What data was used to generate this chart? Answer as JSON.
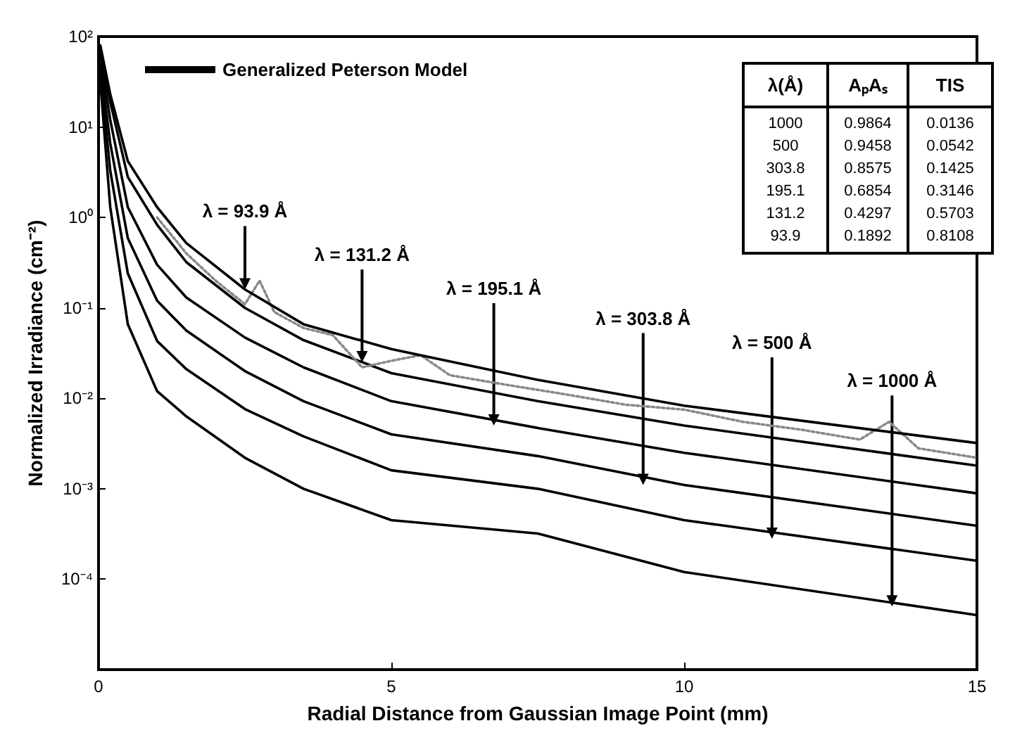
{
  "chart_data": {
    "type": "line",
    "xlabel": "Radial Distance from Gaussian Image Point (mm)",
    "ylabel": "Normalized Irradiance (cm⁻²)",
    "x": [
      0.03,
      0.2,
      0.5,
      1,
      1.5,
      2.5,
      3.5,
      5,
      7.5,
      10,
      15
    ],
    "series": [
      {
        "name": "Generalized Peterson Model",
        "color": "#000000",
        "values": [
          80,
          23,
          4.2,
          1.3,
          0.52,
          0.16,
          0.066,
          0.035,
          0.016,
          0.0083,
          0.0032
        ]
      },
      {
        "color": "#000000",
        "values": [
          70,
          19,
          2.8,
          0.83,
          0.32,
          0.1,
          0.044,
          0.019,
          0.0093,
          0.005,
          0.0018
        ]
      },
      {
        "color": "#000000",
        "values": [
          63,
          12,
          1.3,
          0.3,
          0.13,
          0.047,
          0.022,
          0.0093,
          0.0047,
          0.0025,
          0.00089
        ]
      },
      {
        "color": "#000000",
        "values": [
          50,
          6.6,
          0.59,
          0.12,
          0.056,
          0.02,
          0.0093,
          0.004,
          0.0023,
          0.0011,
          0.00039
        ]
      },
      {
        "color": "#000000",
        "values": [
          40,
          3.3,
          0.24,
          0.043,
          0.021,
          0.0076,
          0.0038,
          0.0016,
          0.001,
          0.00045,
          0.00016
        ]
      },
      {
        "color": "#000000",
        "values": [
          32,
          1.3,
          0.066,
          0.012,
          0.0063,
          0.0022,
          0.001,
          0.00045,
          0.00032,
          0.00012,
          4e-05
        ]
      },
      {
        "color": "#888888",
        "line_style": "dotted",
        "x": [
          1,
          1.5,
          2,
          2.5,
          2.75,
          3,
          3.5,
          4,
          4.5,
          5,
          5.5,
          6,
          7,
          8,
          9,
          10,
          11,
          12,
          13,
          13.5,
          14,
          15
        ],
        "values": [
          1.0,
          0.4,
          0.2,
          0.11,
          0.2,
          0.09,
          0.06,
          0.05,
          0.022,
          0.026,
          0.03,
          0.018,
          0.014,
          0.011,
          0.0085,
          0.0075,
          0.0055,
          0.0045,
          0.0035,
          0.0055,
          0.0028,
          0.0022
        ]
      }
    ],
    "xlim": [
      0,
      15
    ],
    "xticks": [
      0,
      5,
      10,
      15
    ],
    "ylim": [
      1e-05,
      100
    ],
    "yticks": [
      {
        "value": 1e-05,
        "label": null
      },
      {
        "value": 0.0001,
        "label": "10⁻⁴"
      },
      {
        "value": 0.001,
        "label": "10⁻³"
      },
      {
        "value": 0.01,
        "label": "10⁻²"
      },
      {
        "value": 0.1,
        "label": "10⁻¹"
      },
      {
        "value": 1,
        "label": "10⁰"
      },
      {
        "value": 10,
        "label": "10¹"
      },
      {
        "value": 100,
        "label": "10²"
      }
    ],
    "log": "y",
    "grid": false,
    "legend": "top left",
    "marker": "none",
    "line_style": "solid",
    "annotations": [
      {
        "text": "λ = 93.9 Å",
        "x": 2.5,
        "y": 0.16
      },
      {
        "text": "λ = 131.2 Å",
        "x": 4.5,
        "y": 0.025
      },
      {
        "text": "λ = 195.1 Å",
        "x": 6.75,
        "y": 0.005
      },
      {
        "text": "λ = 303.8 Å",
        "x": 9.3,
        "y": 0.0011
      },
      {
        "text": "λ = 500 Å",
        "x": 11.5,
        "y": 0.00028
      },
      {
        "text": "λ = 1000 Å",
        "x": 13.55,
        "y": 5e-05
      },
      "λ(Å)",
      "AₚAₛ",
      "TIS",
      "1000",
      "0.9864",
      "0.0136",
      "500",
      "0.9458",
      "0.0542",
      "303.8",
      "0.8575",
      "0.1425",
      "195.1",
      "0.6854",
      "0.3146",
      "131.2",
      "0.4297",
      "0.5703",
      "93.9",
      "0.1892",
      "0.8108"
    ]
  }
}
